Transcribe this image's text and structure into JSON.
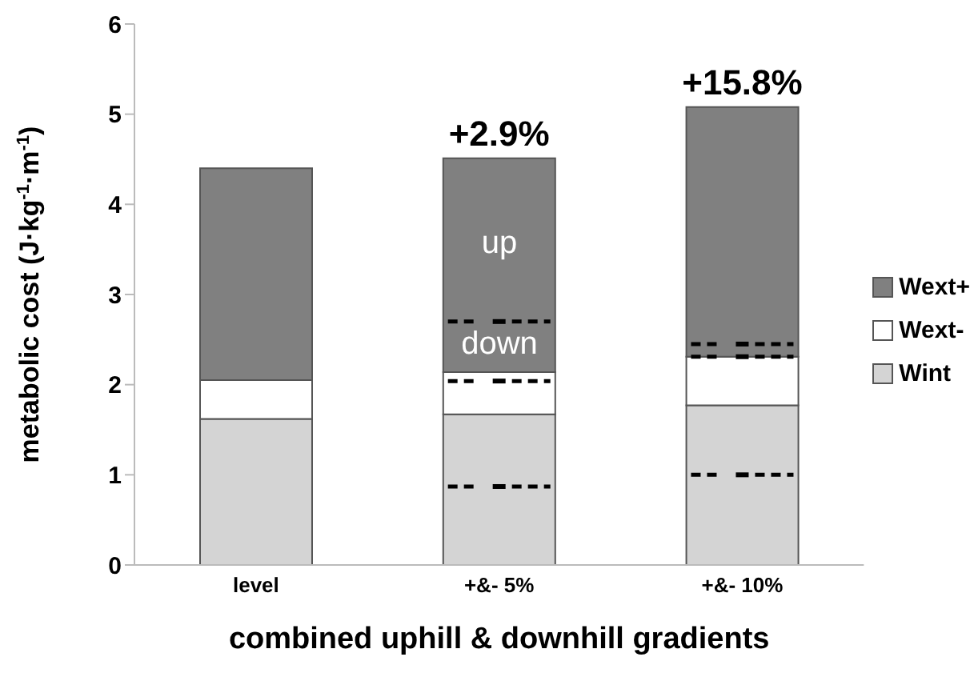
{
  "chart_data": {
    "type": "bar",
    "stacked": true,
    "ylabel": "metabolic cost (J·kg$^{-1}$·m$^{-1}$)",
    "xlabel": "combined uphill & downhill gradients",
    "categories": [
      "level",
      "+&- 5%",
      "+&- 10%"
    ],
    "series": [
      {
        "name": "Wint",
        "color": "#d4d4d4",
        "values": [
          1.62,
          1.67,
          1.77
        ]
      },
      {
        "name": "Wext-",
        "color": "#ffffff",
        "values": [
          0.43,
          0.47,
          0.54
        ]
      },
      {
        "name": "Wext+",
        "color": "#808080",
        "values": [
          2.35,
          2.37,
          2.77
        ]
      },
      {
        "type": "scatter",
        "color": "#000000",
        "line_style": "dashed",
        "values": [
          null,
          0.87,
          1.0
        ]
      },
      {
        "type": "scatter",
        "color": "#000000",
        "line_style": "dashed",
        "values": [
          null,
          2.04,
          2.31
        ]
      },
      {
        "type": "scatter",
        "color": "#000000",
        "line_style": "dashed",
        "values": [
          null,
          2.7,
          2.45
        ]
      }
    ],
    "ylim": [
      0,
      6
    ],
    "yticks": [
      0,
      1,
      2,
      3,
      4,
      5,
      6
    ],
    "grid": false,
    "legend": "right",
    "annotations": [
      {
        "text": "+2.9%",
        "x": "+&- 5%",
        "y": 4.51
      },
      {
        "text": "+15.8%",
        "x": "+&- 10%",
        "y": 5.08
      },
      "up",
      "down"
    ]
  }
}
